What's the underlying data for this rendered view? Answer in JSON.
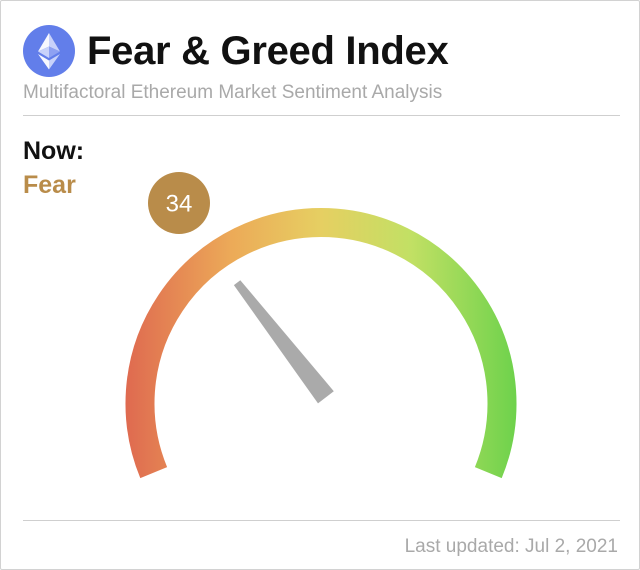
{
  "header": {
    "title": "Fear & Greed Index",
    "subtitle": "Multifactoral Ethereum Market Sentiment Analysis",
    "logo_icon": "ethereum-logo-icon"
  },
  "status": {
    "now_label": "Now:",
    "sentiment": "Fear",
    "sentiment_color": "#b98c4a"
  },
  "gauge": {
    "score": 34,
    "score_text": "34",
    "min": 0,
    "max": 100,
    "colors": {
      "low": "#df6a50",
      "mid": "#e6cf62",
      "high": "#6ed24c",
      "needle": "#aaaaaa",
      "badge": "#b98c4a"
    }
  },
  "footer": {
    "last_updated": "Last updated: Jul 2, 2021"
  }
}
